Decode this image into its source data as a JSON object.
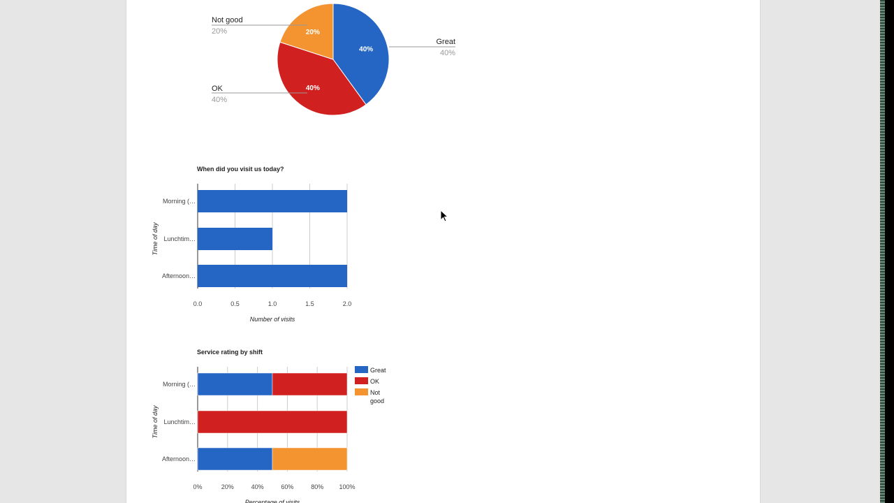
{
  "chart_data": [
    {
      "type": "pie",
      "slices": [
        {
          "label": "Great",
          "value": 40,
          "pct_label": "40%",
          "color": "#2566c4"
        },
        {
          "label": "OK",
          "value": 40,
          "pct_label": "40%",
          "color": "#d12020"
        },
        {
          "label": "Not good",
          "value": 20,
          "pct_label": "20%",
          "color": "#f39431"
        }
      ]
    },
    {
      "type": "bar",
      "orientation": "horizontal",
      "title": "When did you visit us today?",
      "categories": [
        "Morning (…",
        "Lunchtim…",
        "Afternoon…"
      ],
      "values": [
        2,
        1,
        2
      ],
      "xlabel": "Number of visits",
      "ylabel": "Time of day",
      "xlim": [
        0,
        2
      ],
      "ticks": [
        "0.0",
        "0.5",
        "1.0",
        "1.5",
        "2.0"
      ],
      "color": "#2566c4",
      "grid": true
    },
    {
      "type": "bar",
      "orientation": "horizontal",
      "stacked": "percent",
      "title": "Service rating by shift",
      "categories": [
        "Morning (…",
        "Lunchtim…",
        "Afternoon…"
      ],
      "series": [
        {
          "name": "Great",
          "values": [
            50,
            0,
            50
          ],
          "color": "#2566c4"
        },
        {
          "name": "OK",
          "values": [
            50,
            100,
            0
          ],
          "color": "#d12020"
        },
        {
          "name": "Not good",
          "values": [
            0,
            0,
            50
          ],
          "color": "#f39431"
        }
      ],
      "xlabel": "Percentage of visits",
      "ylabel": "Time of day",
      "xlim": [
        0,
        100
      ],
      "ticks": [
        "0%",
        "20%",
        "40%",
        "60%",
        "80%",
        "100%"
      ],
      "legend": "right",
      "grid": true
    }
  ]
}
